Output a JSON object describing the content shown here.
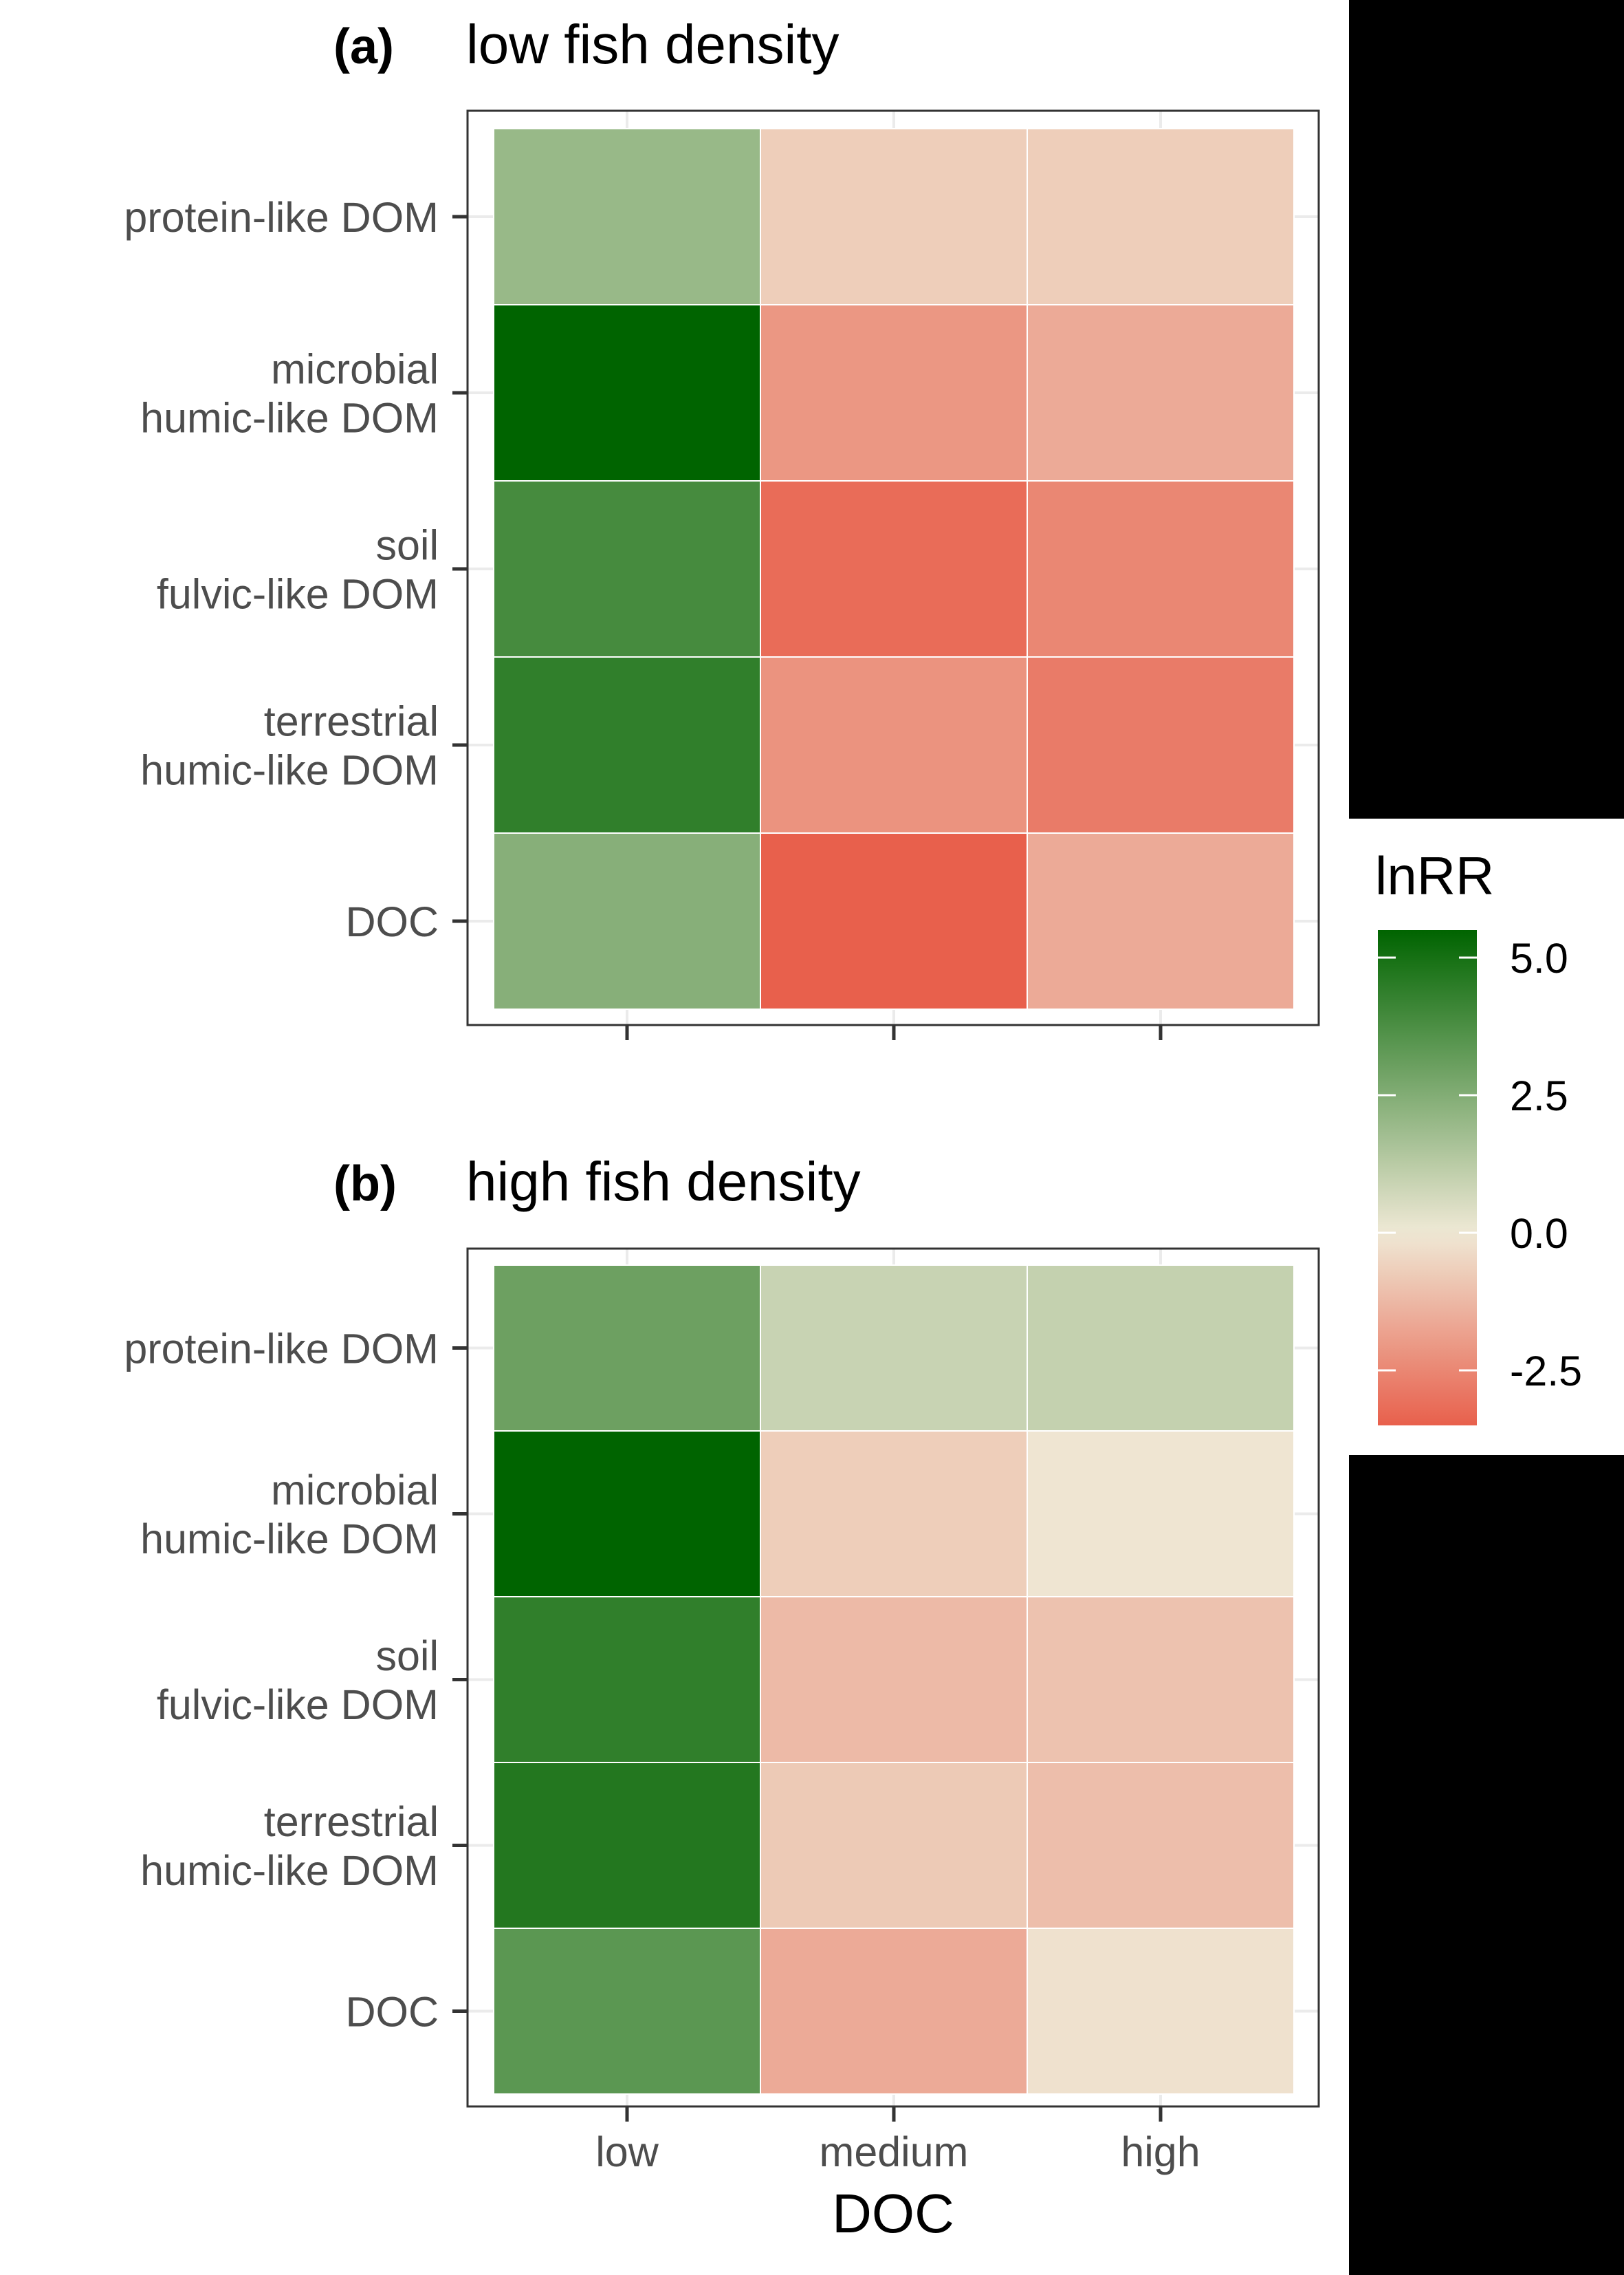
{
  "chart_data": {
    "type": "heatmap",
    "xlabel": "DOC",
    "x_categories": [
      "low",
      "medium",
      "high"
    ],
    "y_categories": [
      [
        "protein-like DOM"
      ],
      [
        "microbial",
        "humic-like DOM"
      ],
      [
        "soil",
        "fulvic-like DOM"
      ],
      [
        "terrestrial",
        "humic-like DOM"
      ],
      [
        "DOC"
      ]
    ],
    "legend": {
      "title": "lnRR",
      "ticks": [
        5.0,
        2.5,
        0.0,
        -2.5
      ],
      "tick_labels": [
        "5.0",
        "2.5",
        "0.0",
        "-2.5"
      ],
      "range": [
        -3.5,
        5.5
      ],
      "placement": "right"
    },
    "panels": [
      {
        "tag": "(a)",
        "title": "low fish density",
        "values": [
          [
            2.0,
            -0.7,
            -0.7
          ],
          [
            5.5,
            -2.1,
            -1.6
          ],
          [
            3.9,
            -3.2,
            -2.5
          ],
          [
            4.4,
            -2.2,
            -2.8
          ],
          [
            2.4,
            -3.5,
            -1.6
          ]
        ]
      },
      {
        "tag": "(b)",
        "title": "high fish density",
        "values": [
          [
            3.0,
            0.9,
            1.0
          ],
          [
            5.5,
            -0.7,
            -0.1
          ],
          [
            4.4,
            -1.2,
            -1.0
          ],
          [
            4.7,
            -0.8,
            -1.1
          ],
          [
            3.4,
            -1.6,
            -0.2
          ]
        ]
      }
    ],
    "colors": {
      "low": "#e8604c",
      "mid": "#efe9d6",
      "high": "#006400",
      "tile_border": "#ffffff",
      "grid": "#ebebeb",
      "panel_border": "#333333",
      "axis_text": "#4d4d4d"
    }
  }
}
